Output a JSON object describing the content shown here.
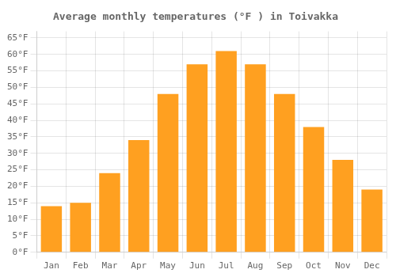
{
  "chart_data": {
    "type": "bar",
    "title": "Average monthly temperatures (°F ) in Toivakka",
    "categories": [
      "Jan",
      "Feb",
      "Mar",
      "Apr",
      "May",
      "Jun",
      "Jul",
      "Aug",
      "Sep",
      "Oct",
      "Nov",
      "Dec"
    ],
    "values": [
      14,
      15,
      24,
      34,
      48,
      57,
      61,
      57,
      48,
      38,
      28,
      19
    ],
    "color": "#FFA020",
    "ylim": [
      0,
      67
    ],
    "yticks": [
      {
        "value": 0,
        "label": "0°F"
      },
      {
        "value": 5,
        "label": "5°F"
      },
      {
        "value": 10,
        "label": "10°F"
      },
      {
        "value": 15,
        "label": "15°F"
      },
      {
        "value": 20,
        "label": "20°F"
      },
      {
        "value": 25,
        "label": "25°F"
      },
      {
        "value": 30,
        "label": "30°F"
      },
      {
        "value": 35,
        "label": "35°F"
      },
      {
        "value": 40,
        "label": "40°F"
      },
      {
        "value": 45,
        "label": "45°F"
      },
      {
        "value": 50,
        "label": "50°F"
      },
      {
        "value": 55,
        "label": "55°F"
      },
      {
        "value": 60,
        "label": "60°F"
      },
      {
        "value": 65,
        "label": "65°F"
      }
    ],
    "grid": true
  }
}
